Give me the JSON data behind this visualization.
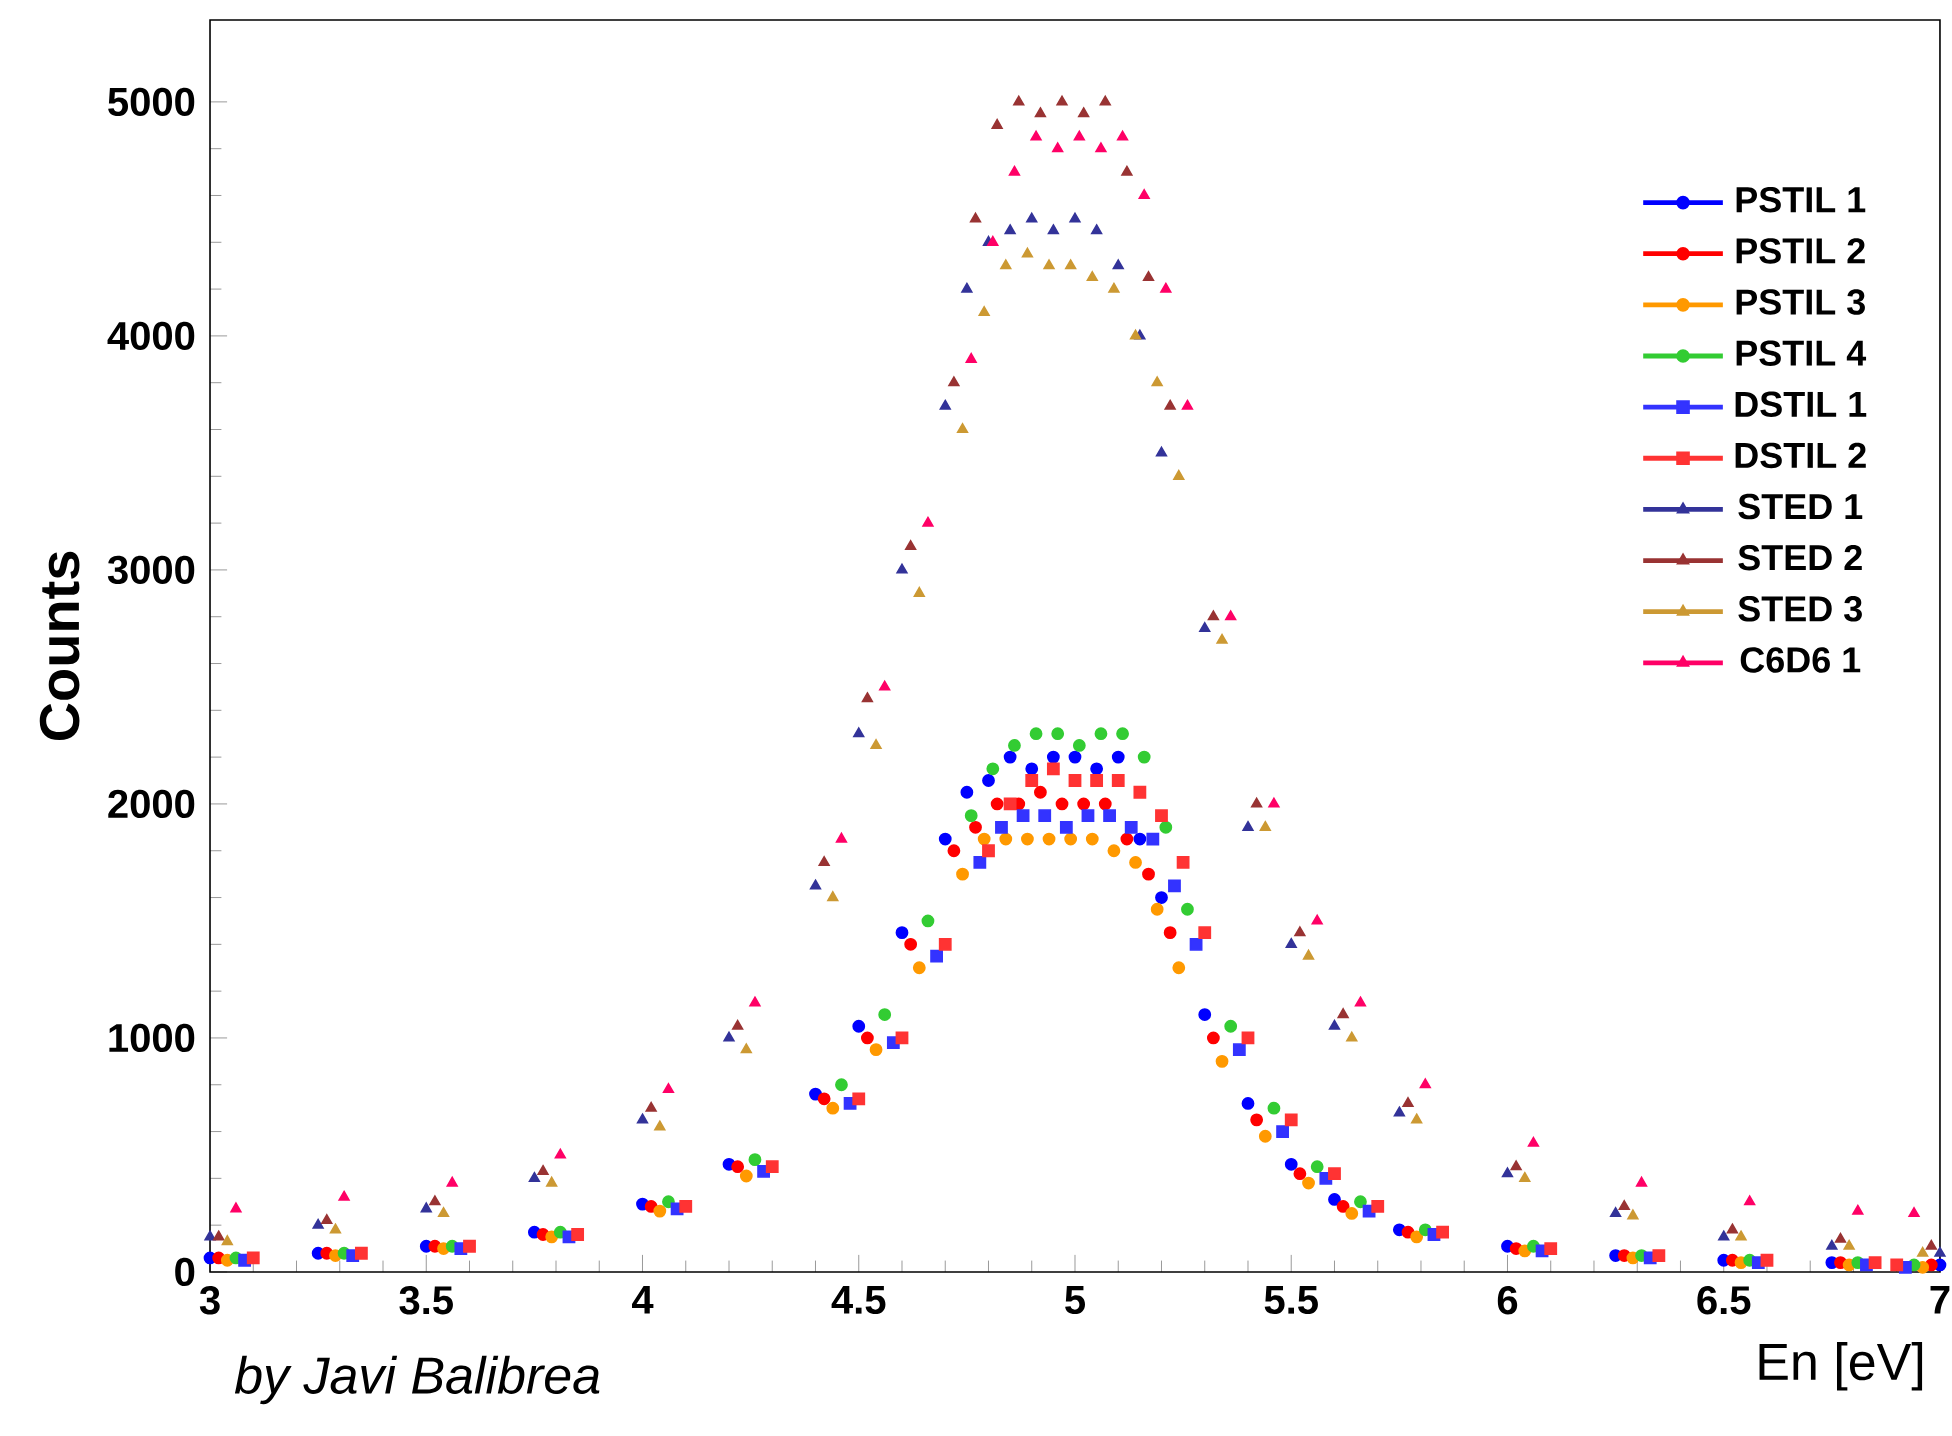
{
  "chart_data": {
    "type": "scatter",
    "xlabel": "En [eV]",
    "ylabel": "Counts",
    "annotations": [
      "by Javi Balibrea"
    ],
    "legend": "right",
    "grid": false,
    "xlim": [
      3,
      7
    ],
    "ylim": [
      0,
      5350
    ],
    "xticks": [
      3,
      3.5,
      4,
      4.5,
      5,
      5.5,
      6,
      6.5,
      7
    ],
    "yticks": [
      0,
      1000,
      2000,
      3000,
      4000,
      5000
    ],
    "series": [
      {
        "name": "PSTIL 1",
        "color": "#0000ff",
        "marker": "circle",
        "x": [
          3.0,
          3.25,
          3.5,
          3.75,
          4.0,
          4.2,
          4.4,
          4.5,
          4.6,
          4.7,
          4.75,
          4.8,
          4.85,
          4.9,
          4.95,
          5.0,
          5.05,
          5.1,
          5.15,
          5.2,
          5.3,
          5.4,
          5.5,
          5.6,
          5.75,
          6.0,
          6.25,
          6.5,
          6.75,
          7.0
        ],
        "values": [
          60,
          80,
          110,
          170,
          290,
          460,
          760,
          1050,
          1450,
          1850,
          2050,
          2100,
          2200,
          2150,
          2200,
          2200,
          2150,
          2200,
          1850,
          1600,
          1100,
          720,
          460,
          310,
          180,
          110,
          70,
          50,
          40,
          30
        ]
      },
      {
        "name": "PSTIL 2",
        "color": "#ff0000",
        "marker": "circle",
        "x": [
          3.02,
          3.27,
          3.52,
          3.77,
          4.02,
          4.22,
          4.42,
          4.52,
          4.62,
          4.72,
          4.77,
          4.82,
          4.87,
          4.92,
          4.97,
          5.02,
          5.07,
          5.12,
          5.17,
          5.22,
          5.32,
          5.42,
          5.52,
          5.62,
          5.77,
          6.02,
          6.27,
          6.52,
          6.77,
          6.98
        ],
        "values": [
          60,
          80,
          110,
          160,
          280,
          450,
          740,
          1000,
          1400,
          1800,
          1900,
          2000,
          2000,
          2050,
          2000,
          2000,
          2000,
          1850,
          1700,
          1450,
          1000,
          650,
          420,
          280,
          170,
          100,
          70,
          50,
          40,
          30
        ]
      },
      {
        "name": "PSTIL 3",
        "color": "#ff9900",
        "marker": "circle",
        "x": [
          3.04,
          3.29,
          3.54,
          3.79,
          4.04,
          4.24,
          4.44,
          4.54,
          4.64,
          4.74,
          4.79,
          4.84,
          4.89,
          4.94,
          4.99,
          5.04,
          5.09,
          5.14,
          5.19,
          5.24,
          5.34,
          5.44,
          5.54,
          5.64,
          5.79,
          6.04,
          6.29,
          6.54,
          6.79,
          6.96
        ],
        "values": [
          50,
          70,
          100,
          150,
          260,
          410,
          700,
          950,
          1300,
          1700,
          1850,
          1850,
          1850,
          1850,
          1850,
          1850,
          1800,
          1750,
          1550,
          1300,
          900,
          580,
          380,
          250,
          150,
          90,
          60,
          40,
          30,
          20
        ]
      },
      {
        "name": "PSTIL 4",
        "color": "#33cc33",
        "marker": "circle",
        "x": [
          3.06,
          3.31,
          3.56,
          3.81,
          4.06,
          4.26,
          4.46,
          4.56,
          4.66,
          4.76,
          4.81,
          4.86,
          4.91,
          4.96,
          5.01,
          5.06,
          5.11,
          5.16,
          5.21,
          5.26,
          5.36,
          5.46,
          5.56,
          5.66,
          5.81,
          6.06,
          6.31,
          6.56,
          6.81,
          6.94
        ],
        "values": [
          60,
          80,
          110,
          170,
          300,
          480,
          800,
          1100,
          1500,
          1950,
          2150,
          2250,
          2300,
          2300,
          2250,
          2300,
          2300,
          2200,
          1900,
          1550,
          1050,
          700,
          450,
          300,
          180,
          110,
          70,
          50,
          40,
          30
        ]
      },
      {
        "name": "DSTIL 1",
        "color": "#3333ff",
        "marker": "square",
        "x": [
          3.08,
          3.33,
          3.58,
          3.83,
          4.08,
          4.28,
          4.48,
          4.58,
          4.68,
          4.78,
          4.83,
          4.88,
          4.93,
          4.98,
          5.03,
          5.08,
          5.13,
          5.18,
          5.23,
          5.28,
          5.38,
          5.48,
          5.58,
          5.68,
          5.83,
          6.08,
          6.33,
          6.58,
          6.83,
          6.92
        ],
        "values": [
          50,
          70,
          100,
          150,
          270,
          430,
          720,
          980,
          1350,
          1750,
          1900,
          1950,
          1950,
          1900,
          1950,
          1950,
          1900,
          1850,
          1650,
          1400,
          950,
          600,
          400,
          260,
          160,
          90,
          60,
          40,
          30,
          20
        ]
      },
      {
        "name": "DSTIL 2",
        "color": "#ff3333",
        "marker": "square",
        "x": [
          3.1,
          3.35,
          3.6,
          3.85,
          4.1,
          4.3,
          4.5,
          4.6,
          4.7,
          4.8,
          4.85,
          4.9,
          4.95,
          5.0,
          5.05,
          5.1,
          5.15,
          5.2,
          5.25,
          5.3,
          5.4,
          5.5,
          5.6,
          5.7,
          5.85,
          6.1,
          6.35,
          6.6,
          6.85,
          6.9
        ],
        "values": [
          60,
          80,
          110,
          160,
          280,
          450,
          740,
          1000,
          1400,
          1800,
          2000,
          2100,
          2150,
          2100,
          2100,
          2100,
          2050,
          1950,
          1750,
          1450,
          1000,
          650,
          420,
          280,
          170,
          100,
          70,
          50,
          40,
          30
        ]
      },
      {
        "name": "STED 1",
        "color": "#333399",
        "marker": "triangle",
        "x": [
          3.0,
          3.25,
          3.5,
          3.75,
          4.0,
          4.2,
          4.4,
          4.5,
          4.6,
          4.7,
          4.75,
          4.8,
          4.85,
          4.9,
          4.95,
          5.0,
          5.05,
          5.1,
          5.15,
          5.2,
          5.3,
          5.4,
          5.5,
          5.6,
          5.75,
          6.0,
          6.25,
          6.5,
          6.75,
          7.0
        ],
        "values": [
          150,
          200,
          270,
          400,
          650,
          1000,
          1650,
          2300,
          3000,
          3700,
          4200,
          4400,
          4450,
          4500,
          4450,
          4500,
          4450,
          4300,
          4000,
          3500,
          2750,
          1900,
          1400,
          1050,
          680,
          420,
          250,
          150,
          110,
          80
        ]
      },
      {
        "name": "STED 2",
        "color": "#993333",
        "marker": "triangle",
        "x": [
          3.02,
          3.27,
          3.52,
          3.77,
          4.02,
          4.22,
          4.42,
          4.52,
          4.62,
          4.72,
          4.77,
          4.82,
          4.87,
          4.92,
          4.97,
          5.02,
          5.07,
          5.12,
          5.17,
          5.22,
          5.32,
          5.42,
          5.52,
          5.62,
          5.77,
          6.02,
          6.27,
          6.52,
          6.77,
          6.98
        ],
        "values": [
          150,
          220,
          300,
          430,
          700,
          1050,
          1750,
          2450,
          3100,
          3800,
          4500,
          4900,
          5000,
          4950,
          5000,
          4950,
          5000,
          4700,
          4250,
          3700,
          2800,
          2000,
          1450,
          1100,
          720,
          450,
          280,
          180,
          140,
          110
        ]
      },
      {
        "name": "STED 3",
        "color": "#cc9933",
        "marker": "triangle",
        "x": [
          3.04,
          3.29,
          3.54,
          3.79,
          4.04,
          4.24,
          4.44,
          4.54,
          4.64,
          4.74,
          4.79,
          4.84,
          4.89,
          4.94,
          4.99,
          5.04,
          5.09,
          5.14,
          5.19,
          5.24,
          5.34,
          5.44,
          5.54,
          5.64,
          5.79,
          6.04,
          6.29,
          6.54,
          6.79,
          6.96
        ],
        "values": [
          130,
          180,
          250,
          380,
          620,
          950,
          1600,
          2250,
          2900,
          3600,
          4100,
          4300,
          4350,
          4300,
          4300,
          4250,
          4200,
          4000,
          3800,
          3400,
          2700,
          1900,
          1350,
          1000,
          650,
          400,
          240,
          150,
          110,
          80
        ]
      },
      {
        "name": "C6D6 1",
        "color": "#ff0066",
        "marker": "triangle",
        "x": [
          3.06,
          3.31,
          3.56,
          3.81,
          4.06,
          4.26,
          4.46,
          4.56,
          4.66,
          4.76,
          4.81,
          4.86,
          4.91,
          4.96,
          5.01,
          5.06,
          5.11,
          5.16,
          5.21,
          5.26,
          5.36,
          5.46,
          5.56,
          5.66,
          5.81,
          6.06,
          6.31,
          6.56,
          6.81,
          6.94
        ],
        "values": [
          270,
          320,
          380,
          500,
          780,
          1150,
          1850,
          2500,
          3200,
          3900,
          4400,
          4700,
          4850,
          4800,
          4850,
          4800,
          4850,
          4600,
          4200,
          3700,
          2800,
          2000,
          1500,
          1150,
          800,
          550,
          380,
          300,
          260,
          250
        ]
      }
    ]
  }
}
